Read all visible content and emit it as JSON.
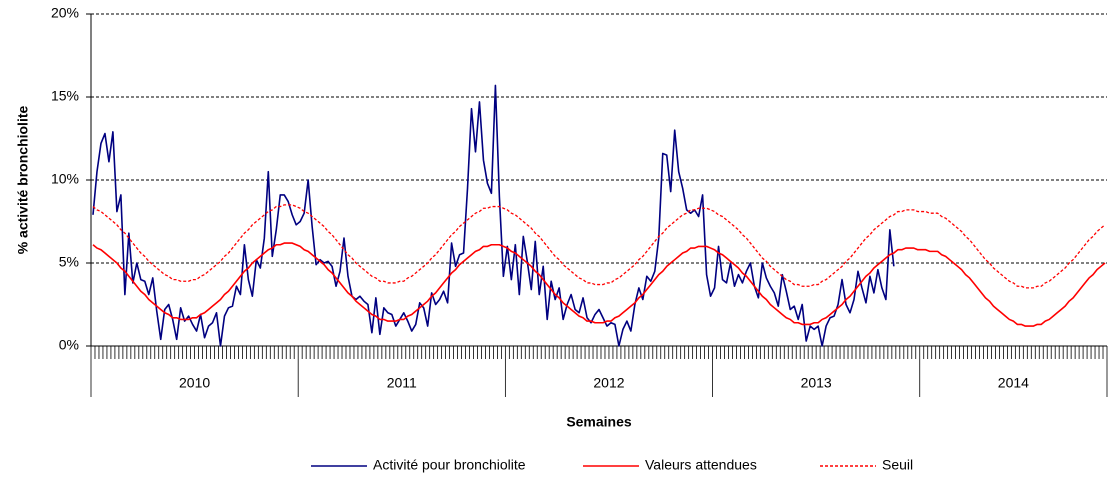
{
  "chart_data": {
    "type": "line",
    "ylabel": "% activité bronchiolite",
    "xlabel": "Semaines",
    "ylim": [
      0,
      20
    ],
    "yticks": [
      {
        "value": 0,
        "label": "0%"
      },
      {
        "value": 5,
        "label": "5%"
      },
      {
        "value": 10,
        "label": "10%"
      },
      {
        "value": 15,
        "label": "15%"
      },
      {
        "value": 20,
        "label": "20%"
      }
    ],
    "grid": true,
    "legend": "bottom",
    "categories": [
      "2010",
      null,
      null,
      null,
      null,
      null,
      null,
      null,
      null,
      null,
      null,
      null,
      null,
      null,
      null,
      null,
      null,
      null,
      null,
      null,
      null,
      null,
      null,
      null,
      null,
      null,
      null,
      null,
      null,
      null,
      null,
      null,
      null,
      null,
      null,
      null,
      null,
      null,
      null,
      null,
      null,
      null,
      null,
      null,
      null,
      null,
      null,
      null,
      null,
      null,
      null,
      null,
      "2011",
      null,
      null,
      null,
      null,
      null,
      null,
      null,
      null,
      null,
      null,
      null,
      null,
      null,
      null,
      null,
      null,
      null,
      null,
      null,
      null,
      null,
      null,
      null,
      null,
      null,
      null,
      null,
      null,
      null,
      null,
      null,
      null,
      null,
      null,
      null,
      null,
      null,
      null,
      null,
      null,
      null,
      null,
      null,
      null,
      null,
      null,
      null,
      null,
      null,
      null,
      null,
      "2012",
      null,
      null,
      null,
      null,
      null,
      null,
      null,
      null,
      null,
      null,
      null,
      null,
      null,
      null,
      null,
      null,
      null,
      null,
      null,
      null,
      null,
      null,
      null,
      null,
      null,
      null,
      null,
      null,
      null,
      null,
      null,
      null,
      null,
      null,
      null,
      null,
      null,
      null,
      null,
      null,
      null,
      null,
      null,
      null,
      null,
      null,
      null,
      null,
      null,
      null,
      null,
      "2013",
      null,
      null,
      null,
      null,
      null,
      null,
      null,
      null,
      null,
      null,
      null,
      null,
      null,
      null,
      null,
      null,
      null,
      null,
      null,
      null,
      null,
      null,
      null,
      null,
      null,
      null,
      null,
      null,
      null,
      null,
      null,
      null,
      null,
      null,
      null,
      null,
      null,
      null,
      null,
      null,
      null,
      null,
      null,
      null,
      null,
      null,
      null,
      null,
      null,
      null,
      null,
      "2014",
      null,
      null,
      null,
      null,
      null,
      null,
      null,
      null,
      null,
      null,
      null,
      null,
      null,
      null,
      null,
      null,
      null,
      null,
      null,
      null,
      null,
      null,
      null,
      null,
      null,
      null,
      null,
      null,
      null,
      null,
      null,
      null,
      null,
      null,
      null,
      null,
      null,
      null,
      null,
      null,
      null,
      null,
      null,
      null,
      null,
      null
    ],
    "series": [
      {
        "name": "Activité pour bronchiolite",
        "color": "#000080",
        "line_style": "solid",
        "values": [
          7.9,
          10.5,
          12.2,
          12.8,
          11.1,
          12.9,
          8.1,
          9.1,
          3.1,
          6.8,
          3.8,
          5.0,
          4.0,
          3.9,
          3.1,
          4.1,
          2.1,
          0.4,
          2.2,
          2.5,
          1.6,
          0.4,
          2.3,
          1.5,
          1.8,
          1.3,
          0.9,
          1.9,
          0.5,
          1.2,
          1.4,
          2.0,
          0.0,
          1.8,
          2.3,
          2.4,
          3.6,
          3.1,
          6.1,
          4.0,
          3.0,
          5.2,
          4.7,
          6.5,
          10.5,
          5.4,
          7.0,
          9.1,
          9.1,
          8.7,
          7.9,
          7.3,
          7.5,
          8.0,
          10.0,
          7.2,
          4.9,
          5.2,
          5.0,
          5.1,
          4.8,
          3.6,
          4.5,
          6.5,
          4.2,
          3.0,
          2.8,
          3.0,
          2.7,
          2.5,
          0.8,
          2.9,
          0.7,
          2.3,
          2.0,
          1.9,
          1.2,
          1.6,
          2.0,
          1.5,
          0.9,
          1.3,
          2.6,
          2.3,
          1.2,
          3.2,
          2.5,
          2.8,
          3.3,
          2.6,
          6.2,
          4.8,
          5.5,
          5.6,
          9.5,
          14.3,
          11.7,
          14.7,
          11.2,
          9.8,
          9.2,
          15.7,
          9.0,
          4.2,
          6.0,
          4.0,
          6.1,
          3.1,
          6.6,
          5.1,
          3.4,
          6.3,
          3.1,
          4.8,
          1.6,
          3.9,
          2.8,
          3.5,
          1.6,
          2.5,
          3.1,
          2.2,
          2.0,
          2.9,
          1.7,
          1.4,
          1.9,
          2.2,
          1.7,
          1.2,
          1.4,
          1.3,
          0.0,
          1.0,
          1.5,
          0.9,
          2.5,
          3.5,
          2.8,
          4.2,
          3.9,
          4.5,
          6.5,
          11.6,
          11.5,
          9.3,
          13.0,
          10.5,
          9.5,
          8.2,
          8.0,
          8.2,
          7.8,
          9.1,
          4.3,
          3.0,
          3.5,
          6.0,
          4.0,
          3.8,
          5.0,
          3.6,
          4.3,
          3.8,
          4.5,
          5.0,
          3.6,
          2.9,
          5.0,
          4.1,
          3.6,
          3.2,
          2.4,
          4.3,
          3.3,
          2.2,
          2.4,
          1.6,
          2.5,
          0.3,
          1.2,
          1.0,
          1.2,
          0.0,
          1.2,
          1.7,
          1.8,
          2.5,
          4.0,
          2.5,
          2.0,
          2.8,
          4.5,
          3.5,
          2.6,
          4.2,
          3.2,
          4.6,
          3.5,
          2.8,
          7.0,
          4.8,
          null,
          null,
          null,
          null,
          null,
          null,
          null,
          null,
          null,
          null,
          null,
          null,
          null,
          null,
          null,
          null,
          null,
          null,
          null,
          null,
          null,
          null,
          null,
          null,
          null,
          null,
          null,
          null,
          null,
          null,
          null,
          null,
          null,
          null,
          null,
          null,
          null,
          null,
          null,
          null,
          null,
          null,
          null,
          null,
          null,
          null,
          null,
          null,
          null,
          null,
          null,
          null,
          null
        ]
      },
      {
        "name": "Valeurs attendues",
        "color": "#ff0000",
        "line_style": "solid",
        "values": [
          6.1,
          5.9,
          5.8,
          5.6,
          5.4,
          5.2,
          5.0,
          4.7,
          4.5,
          4.2,
          3.9,
          3.6,
          3.3,
          3.1,
          2.8,
          2.6,
          2.4,
          2.2,
          2.0,
          1.9,
          1.7,
          1.7,
          1.6,
          1.6,
          1.6,
          1.7,
          1.7,
          1.9,
          2.0,
          2.2,
          2.4,
          2.6,
          2.8,
          3.1,
          3.3,
          3.6,
          3.9,
          4.2,
          4.5,
          4.7,
          5.0,
          5.2,
          5.4,
          5.6,
          5.8,
          5.9,
          6.1,
          6.1,
          6.2,
          6.2,
          6.2,
          6.1,
          6.0,
          5.8,
          5.7,
          5.5,
          5.3,
          5.1,
          4.9,
          4.6,
          4.4,
          4.1,
          3.8,
          3.5,
          3.2,
          3.0,
          2.7,
          2.5,
          2.3,
          2.1,
          1.9,
          1.8,
          1.6,
          1.6,
          1.5,
          1.5,
          1.5,
          1.6,
          1.6,
          1.8,
          1.9,
          2.1,
          2.3,
          2.5,
          2.7,
          3.0,
          3.2,
          3.5,
          3.8,
          4.1,
          4.4,
          4.6,
          4.9,
          5.1,
          5.3,
          5.5,
          5.7,
          5.8,
          6.0,
          6.0,
          6.1,
          6.1,
          6.1,
          6.0,
          5.9,
          5.7,
          5.6,
          5.4,
          5.2,
          5.0,
          4.8,
          4.5,
          4.3,
          4.0,
          3.7,
          3.4,
          3.1,
          2.9,
          2.6,
          2.4,
          2.2,
          2.0,
          1.8,
          1.7,
          1.5,
          1.5,
          1.4,
          1.4,
          1.4,
          1.5,
          1.5,
          1.7,
          1.8,
          2.0,
          2.2,
          2.4,
          2.6,
          2.9,
          3.1,
          3.4,
          3.7,
          4.0,
          4.3,
          4.5,
          4.8,
          5.0,
          5.2,
          5.4,
          5.6,
          5.7,
          5.9,
          5.9,
          6.0,
          6.0,
          6.0,
          5.9,
          5.8,
          5.6,
          5.5,
          5.3,
          5.1,
          4.9,
          4.7,
          4.4,
          4.2,
          3.9,
          3.6,
          3.3,
          3.0,
          2.8,
          2.5,
          2.3,
          2.1,
          1.9,
          1.7,
          1.6,
          1.4,
          1.4,
          1.3,
          1.3,
          1.3,
          1.4,
          1.4,
          1.6,
          1.7,
          1.9,
          2.1,
          2.3,
          2.5,
          2.8,
          3.0,
          3.3,
          3.6,
          3.9,
          4.2,
          4.4,
          4.7,
          4.9,
          5.1,
          5.3,
          5.5,
          5.6,
          5.8,
          5.8,
          5.9,
          5.9,
          5.9,
          5.8,
          5.8,
          5.8,
          5.7,
          5.7,
          5.7,
          5.5,
          5.4,
          5.2,
          5.0,
          4.8,
          4.6,
          4.3,
          4.1,
          3.8,
          3.5,
          3.2,
          2.9,
          2.7,
          2.4,
          2.2,
          2.0,
          1.8,
          1.6,
          1.5,
          1.3,
          1.3,
          1.2,
          1.2,
          1.2,
          1.3,
          1.3,
          1.5,
          1.6,
          1.8,
          2.0,
          2.2,
          2.4,
          2.7,
          2.9,
          3.2,
          3.5,
          3.8,
          4.1,
          4.3,
          4.6,
          4.8,
          5.0
        ]
      },
      {
        "name": "Seuil",
        "color": "#ff0000",
        "line_style": "dashed",
        "values": [
          8.4,
          8.2,
          8.1,
          7.9,
          7.7,
          7.5,
          7.3,
          7.0,
          6.8,
          6.5,
          6.2,
          5.9,
          5.6,
          5.4,
          5.1,
          4.9,
          4.7,
          4.5,
          4.3,
          4.2,
          4.0,
          4.0,
          3.9,
          3.9,
          3.9,
          4.0,
          4.0,
          4.2,
          4.3,
          4.5,
          4.7,
          4.9,
          5.1,
          5.4,
          5.6,
          5.9,
          6.2,
          6.5,
          6.8,
          7.0,
          7.3,
          7.5,
          7.7,
          7.9,
          8.1,
          8.2,
          8.4,
          8.4,
          8.5,
          8.5,
          8.5,
          8.4,
          8.3,
          8.1,
          8.0,
          7.8,
          7.6,
          7.4,
          7.2,
          6.9,
          6.7,
          6.4,
          6.1,
          5.8,
          5.5,
          5.3,
          5.0,
          4.8,
          4.6,
          4.4,
          4.2,
          4.1,
          3.9,
          3.9,
          3.8,
          3.8,
          3.8,
          3.9,
          3.9,
          4.1,
          4.2,
          4.4,
          4.6,
          4.8,
          5.0,
          5.3,
          5.5,
          5.8,
          6.1,
          6.4,
          6.7,
          6.9,
          7.2,
          7.4,
          7.6,
          7.8,
          8.0,
          8.1,
          8.3,
          8.3,
          8.4,
          8.4,
          8.4,
          8.3,
          8.2,
          8.0,
          7.9,
          7.7,
          7.5,
          7.3,
          7.1,
          6.8,
          6.6,
          6.3,
          6.0,
          5.7,
          5.4,
          5.2,
          4.9,
          4.7,
          4.5,
          4.3,
          4.1,
          4.0,
          3.8,
          3.8,
          3.7,
          3.7,
          3.7,
          3.8,
          3.8,
          4.0,
          4.1,
          4.3,
          4.5,
          4.7,
          4.9,
          5.2,
          5.4,
          5.7,
          6.0,
          6.3,
          6.6,
          6.8,
          7.1,
          7.3,
          7.5,
          7.7,
          7.9,
          8.0,
          8.2,
          8.2,
          8.3,
          8.3,
          8.3,
          8.2,
          8.1,
          7.9,
          7.8,
          7.6,
          7.4,
          7.2,
          7.0,
          6.7,
          6.5,
          6.2,
          5.9,
          5.6,
          5.3,
          5.1,
          4.8,
          4.6,
          4.4,
          4.2,
          4.0,
          3.9,
          3.7,
          3.7,
          3.6,
          3.6,
          3.6,
          3.7,
          3.7,
          3.9,
          4.0,
          4.2,
          4.4,
          4.6,
          4.8,
          5.1,
          5.3,
          5.6,
          5.9,
          6.2,
          6.5,
          6.7,
          7.0,
          7.2,
          7.4,
          7.6,
          7.8,
          7.9,
          8.1,
          8.1,
          8.2,
          8.2,
          8.2,
          8.1,
          8.1,
          8.1,
          8.0,
          8.0,
          8.0,
          7.8,
          7.7,
          7.5,
          7.3,
          7.1,
          6.9,
          6.6,
          6.4,
          6.1,
          5.8,
          5.5,
          5.2,
          5.0,
          4.7,
          4.5,
          4.3,
          4.1,
          3.9,
          3.8,
          3.6,
          3.6,
          3.5,
          3.5,
          3.5,
          3.6,
          3.6,
          3.8,
          3.9,
          4.1,
          4.3,
          4.5,
          4.7,
          5.0,
          5.2,
          5.5,
          5.8,
          6.1,
          6.4,
          6.6,
          6.9,
          7.1,
          7.3
        ]
      }
    ]
  }
}
